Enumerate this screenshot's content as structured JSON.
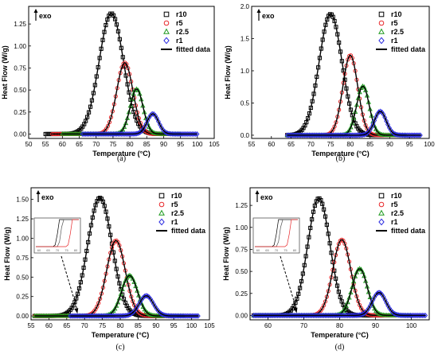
{
  "figure": {
    "panel_labels": [
      "(a)",
      "(b)",
      "(c)",
      "(d)"
    ]
  },
  "common": {
    "xlabel": "Temperature (°C)",
    "ylabel": "Heat Flow (W/g)",
    "exo_label": "exo",
    "legend": [
      {
        "label": "r10",
        "marker": "square",
        "color": "#000000"
      },
      {
        "label": "r5",
        "marker": "circle",
        "color": "#e8282a"
      },
      {
        "label": "r2.5",
        "marker": "triangle",
        "color": "#1f9a1f"
      },
      {
        "label": "r1",
        "marker": "diamond",
        "color": "#2a2ae0"
      },
      {
        "label": "fitted data",
        "marker": "line",
        "color": "#000000"
      }
    ]
  },
  "chart_data": [
    {
      "type": "line",
      "panel": "(a)",
      "xlabel": "Temperature (°C)",
      "ylabel": "Heat Flow (W/g)",
      "xlim": [
        50,
        105
      ],
      "ylim": [
        -0.05,
        1.45
      ],
      "xticks": [
        50,
        55,
        60,
        65,
        70,
        75,
        80,
        85,
        90,
        95,
        100,
        105
      ],
      "yticks": [
        0.0,
        0.25,
        0.5,
        0.75,
        1.0,
        1.25
      ],
      "ytick_labels": [
        "0.00",
        "0.25",
        "0.50",
        "0.75",
        "1.00",
        "1.25"
      ],
      "inset": false,
      "series": [
        {
          "name": "r10",
          "peak_x": 74.5,
          "peak_y": 1.37,
          "width": 3.6,
          "start": 55,
          "end": 90
        },
        {
          "name": "r5",
          "peak_x": 78.5,
          "peak_y": 0.81,
          "width": 2.4,
          "start": 57,
          "end": 92
        },
        {
          "name": "r2.5",
          "peak_x": 82.0,
          "peak_y": 0.51,
          "width": 1.9,
          "start": 60,
          "end": 95
        },
        {
          "name": "r1",
          "peak_x": 86.8,
          "peak_y": 0.23,
          "width": 1.7,
          "start": 66,
          "end": 100
        }
      ]
    },
    {
      "type": "line",
      "panel": "(b)",
      "xlabel": "Temperature (°C)",
      "ylabel": "Heat Flow (W/g)",
      "xlim": [
        55,
        100
      ],
      "ylim": [
        -0.05,
        2.0
      ],
      "xticks": [
        55,
        60,
        65,
        70,
        75,
        80,
        85,
        90,
        95,
        100
      ],
      "yticks": [
        0.0,
        0.5,
        1.0,
        1.5,
        2.0
      ],
      "ytick_labels": [
        "0.0",
        "0.5",
        "1.0",
        "1.5",
        "2.0"
      ],
      "inset": false,
      "series": [
        {
          "name": "r10",
          "peak_x": 75.0,
          "peak_y": 1.88,
          "width": 2.9,
          "start": 64,
          "end": 88
        },
        {
          "name": "r5",
          "peak_x": 80.0,
          "peak_y": 1.24,
          "width": 1.9,
          "start": 64,
          "end": 92
        },
        {
          "name": "r2.5",
          "peak_x": 83.2,
          "peak_y": 0.76,
          "width": 1.6,
          "start": 64,
          "end": 94
        },
        {
          "name": "r1",
          "peak_x": 87.6,
          "peak_y": 0.37,
          "width": 1.5,
          "start": 64,
          "end": 98
        }
      ]
    },
    {
      "type": "line",
      "panel": "(c)",
      "xlabel": "Temperature (°C)",
      "ylabel": "Heat Flow (W/g)",
      "xlim": [
        55,
        105
      ],
      "ylim": [
        -0.05,
        1.65
      ],
      "xticks": [
        55,
        60,
        65,
        70,
        75,
        80,
        85,
        90,
        95,
        100,
        105
      ],
      "yticks": [
        0.0,
        0.25,
        0.5,
        0.75,
        1.0,
        1.25,
        1.5
      ],
      "ytick_labels": [
        "0.00",
        "0.25",
        "0.50",
        "0.75",
        "1.00",
        "1.25",
        "1.50"
      ],
      "inset": true,
      "inset_ticks": [
        "60",
        "65",
        "70",
        "75",
        "80"
      ],
      "series": [
        {
          "name": "r10",
          "peak_x": 74.3,
          "peak_y": 1.52,
          "width": 3.4,
          "start": 56,
          "end": 92
        },
        {
          "name": "r5",
          "peak_x": 78.8,
          "peak_y": 0.97,
          "width": 2.6,
          "start": 56,
          "end": 95
        },
        {
          "name": "r2.5",
          "peak_x": 82.6,
          "peak_y": 0.52,
          "width": 2.2,
          "start": 56,
          "end": 98
        },
        {
          "name": "r1",
          "peak_x": 87.3,
          "peak_y": 0.26,
          "width": 2.0,
          "start": 66,
          "end": 102
        }
      ]
    },
    {
      "type": "line",
      "panel": "(d)",
      "xlabel": "Temperature (°C)",
      "ylabel": "Heat Flow (W/g)",
      "xlim": [
        55,
        105
      ],
      "ylim": [
        -0.05,
        1.45
      ],
      "xticks": [
        60,
        70,
        80,
        90,
        100
      ],
      "yticks": [
        0.0,
        0.25,
        0.5,
        0.75,
        1.0,
        1.25
      ],
      "ytick_labels": [
        "0.00",
        "0.25",
        "0.50",
        "0.75",
        "1.00",
        "1.25"
      ],
      "inset": true,
      "inset_ticks": [
        "60",
        "65",
        "70",
        "75",
        "80"
      ],
      "series": [
        {
          "name": "r10",
          "peak_x": 74.2,
          "peak_y": 1.33,
          "width": 3.1,
          "start": 56,
          "end": 92
        },
        {
          "name": "r5",
          "peak_x": 80.6,
          "peak_y": 0.86,
          "width": 2.5,
          "start": 56,
          "end": 96
        },
        {
          "name": "r2.5",
          "peak_x": 85.6,
          "peak_y": 0.53,
          "width": 2.1,
          "start": 56,
          "end": 100
        },
        {
          "name": "r1",
          "peak_x": 91.0,
          "peak_y": 0.26,
          "width": 1.9,
          "start": 56,
          "end": 104
        }
      ]
    }
  ]
}
